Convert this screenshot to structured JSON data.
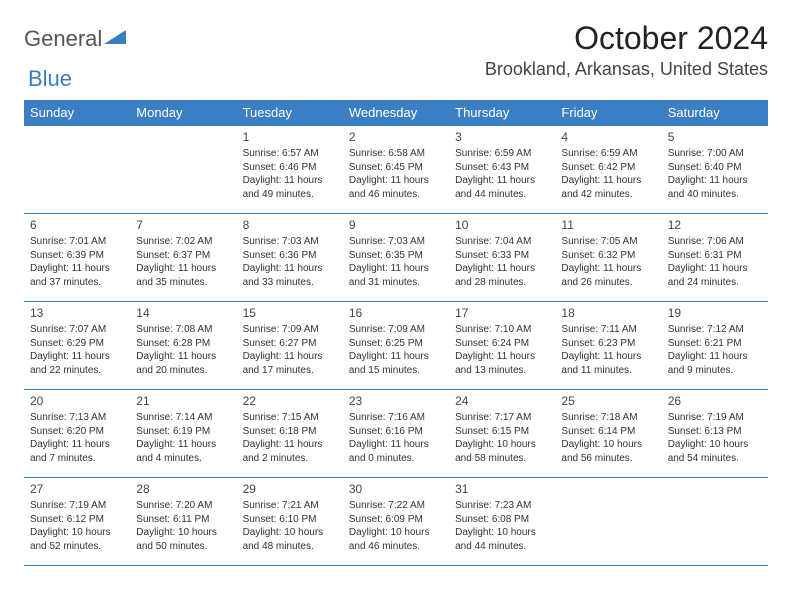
{
  "logo": {
    "general": "General",
    "blue": "Blue"
  },
  "title": "October 2024",
  "location": "Brookland, Arkansas, United States",
  "colors": {
    "header_bg": "#3a7fc4",
    "header_text": "#ffffff",
    "border": "#3a7fc4",
    "body_text": "#333333",
    "title_text": "#222222"
  },
  "weekdays": [
    "Sunday",
    "Monday",
    "Tuesday",
    "Wednesday",
    "Thursday",
    "Friday",
    "Saturday"
  ],
  "days": [
    {
      "n": 1,
      "sunrise": "6:57 AM",
      "sunset": "6:46 PM",
      "dl": "11 hours and 49 minutes."
    },
    {
      "n": 2,
      "sunrise": "6:58 AM",
      "sunset": "6:45 PM",
      "dl": "11 hours and 46 minutes."
    },
    {
      "n": 3,
      "sunrise": "6:59 AM",
      "sunset": "6:43 PM",
      "dl": "11 hours and 44 minutes."
    },
    {
      "n": 4,
      "sunrise": "6:59 AM",
      "sunset": "6:42 PM",
      "dl": "11 hours and 42 minutes."
    },
    {
      "n": 5,
      "sunrise": "7:00 AM",
      "sunset": "6:40 PM",
      "dl": "11 hours and 40 minutes."
    },
    {
      "n": 6,
      "sunrise": "7:01 AM",
      "sunset": "6:39 PM",
      "dl": "11 hours and 37 minutes."
    },
    {
      "n": 7,
      "sunrise": "7:02 AM",
      "sunset": "6:37 PM",
      "dl": "11 hours and 35 minutes."
    },
    {
      "n": 8,
      "sunrise": "7:03 AM",
      "sunset": "6:36 PM",
      "dl": "11 hours and 33 minutes."
    },
    {
      "n": 9,
      "sunrise": "7:03 AM",
      "sunset": "6:35 PM",
      "dl": "11 hours and 31 minutes."
    },
    {
      "n": 10,
      "sunrise": "7:04 AM",
      "sunset": "6:33 PM",
      "dl": "11 hours and 28 minutes."
    },
    {
      "n": 11,
      "sunrise": "7:05 AM",
      "sunset": "6:32 PM",
      "dl": "11 hours and 26 minutes."
    },
    {
      "n": 12,
      "sunrise": "7:06 AM",
      "sunset": "6:31 PM",
      "dl": "11 hours and 24 minutes."
    },
    {
      "n": 13,
      "sunrise": "7:07 AM",
      "sunset": "6:29 PM",
      "dl": "11 hours and 22 minutes."
    },
    {
      "n": 14,
      "sunrise": "7:08 AM",
      "sunset": "6:28 PM",
      "dl": "11 hours and 20 minutes."
    },
    {
      "n": 15,
      "sunrise": "7:09 AM",
      "sunset": "6:27 PM",
      "dl": "11 hours and 17 minutes."
    },
    {
      "n": 16,
      "sunrise": "7:09 AM",
      "sunset": "6:25 PM",
      "dl": "11 hours and 15 minutes."
    },
    {
      "n": 17,
      "sunrise": "7:10 AM",
      "sunset": "6:24 PM",
      "dl": "11 hours and 13 minutes."
    },
    {
      "n": 18,
      "sunrise": "7:11 AM",
      "sunset": "6:23 PM",
      "dl": "11 hours and 11 minutes."
    },
    {
      "n": 19,
      "sunrise": "7:12 AM",
      "sunset": "6:21 PM",
      "dl": "11 hours and 9 minutes."
    },
    {
      "n": 20,
      "sunrise": "7:13 AM",
      "sunset": "6:20 PM",
      "dl": "11 hours and 7 minutes."
    },
    {
      "n": 21,
      "sunrise": "7:14 AM",
      "sunset": "6:19 PM",
      "dl": "11 hours and 4 minutes."
    },
    {
      "n": 22,
      "sunrise": "7:15 AM",
      "sunset": "6:18 PM",
      "dl": "11 hours and 2 minutes."
    },
    {
      "n": 23,
      "sunrise": "7:16 AM",
      "sunset": "6:16 PM",
      "dl": "11 hours and 0 minutes."
    },
    {
      "n": 24,
      "sunrise": "7:17 AM",
      "sunset": "6:15 PM",
      "dl": "10 hours and 58 minutes."
    },
    {
      "n": 25,
      "sunrise": "7:18 AM",
      "sunset": "6:14 PM",
      "dl": "10 hours and 56 minutes."
    },
    {
      "n": 26,
      "sunrise": "7:19 AM",
      "sunset": "6:13 PM",
      "dl": "10 hours and 54 minutes."
    },
    {
      "n": 27,
      "sunrise": "7:19 AM",
      "sunset": "6:12 PM",
      "dl": "10 hours and 52 minutes."
    },
    {
      "n": 28,
      "sunrise": "7:20 AM",
      "sunset": "6:11 PM",
      "dl": "10 hours and 50 minutes."
    },
    {
      "n": 29,
      "sunrise": "7:21 AM",
      "sunset": "6:10 PM",
      "dl": "10 hours and 48 minutes."
    },
    {
      "n": 30,
      "sunrise": "7:22 AM",
      "sunset": "6:09 PM",
      "dl": "10 hours and 46 minutes."
    },
    {
      "n": 31,
      "sunrise": "7:23 AM",
      "sunset": "6:08 PM",
      "dl": "10 hours and 44 minutes."
    }
  ],
  "first_weekday_index": 2,
  "labels": {
    "sunrise": "Sunrise:",
    "sunset": "Sunset:",
    "daylight": "Daylight:"
  }
}
